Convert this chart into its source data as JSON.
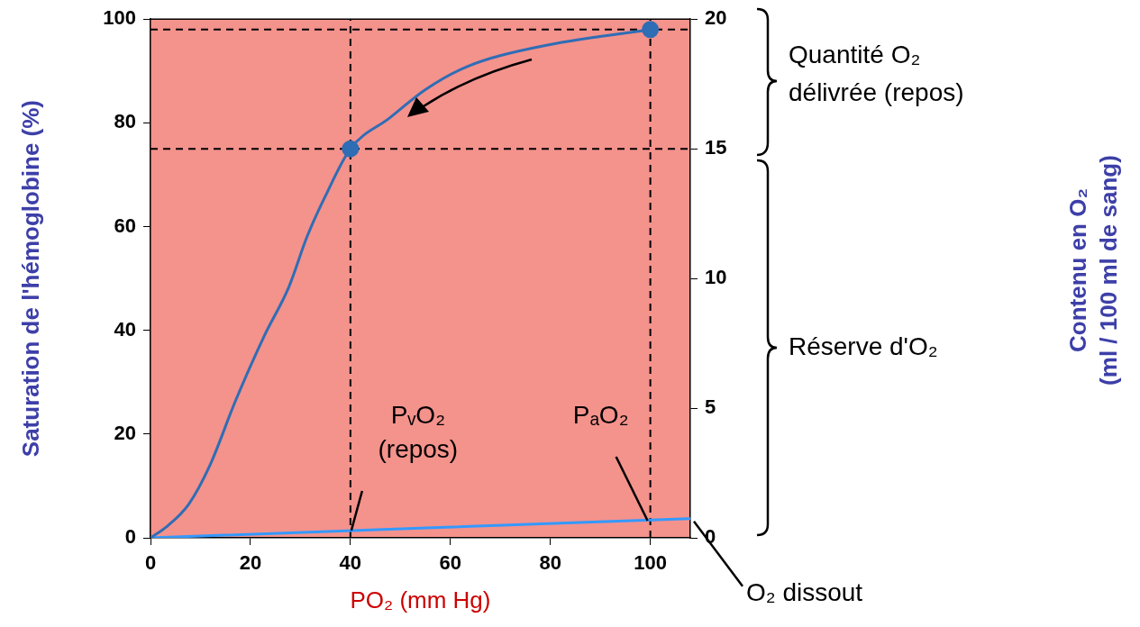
{
  "chart_data": {
    "type": "line",
    "xlabel": "PO₂ (mm Hg)",
    "ylabel": "Saturation de l'hémoglobine (%)",
    "xlim": [
      0,
      108
    ],
    "xticks": [
      0,
      20,
      40,
      60,
      80,
      100
    ],
    "ylim": [
      0,
      100
    ],
    "yticks": [
      0,
      20,
      40,
      60,
      80,
      100
    ],
    "y2lim": [
      0,
      20
    ],
    "y2ticks": [
      0,
      5,
      10,
      15,
      20
    ],
    "grid": false,
    "legend": false,
    "line_style": "solid",
    "marker": "none",
    "series": [
      {
        "type": "line",
        "color": "#2f6db5",
        "x": [
          0,
          3.3,
          7.6,
          11.9,
          17,
          22.7,
          27.7,
          31.3,
          34.9,
          40,
          47.8,
          55,
          63.5,
          77.9,
          100
        ],
        "values": [
          0,
          2.2,
          6.4,
          14,
          26.4,
          38.8,
          48.4,
          58,
          65.7,
          75,
          80.9,
          86.4,
          90.9,
          94.7,
          98
        ]
      },
      {
        "type": "line",
        "name": "O₂ dissout",
        "color": "#3399ff",
        "x": [
          0,
          108
        ],
        "values": [
          0,
          3.7
        ]
      },
      {
        "type": "scatter",
        "marker": "circle",
        "color": "#2f6db5",
        "x": [
          40,
          100
        ],
        "values": [
          75,
          98
        ],
        "axis": "y"
      }
    ],
    "ref_lines": [
      {
        "axis": "y",
        "value": 98,
        "color": "#000000",
        "line_style": "dashed"
      },
      {
        "axis": "y",
        "value": 75,
        "color": "#000000",
        "line_style": "dashed"
      },
      {
        "axis": "x",
        "value": 40,
        "color": "#000000",
        "line_style": "dashed"
      },
      {
        "axis": "x",
        "value": 100,
        "color": "#000000",
        "line_style": "dashed"
      }
    ],
    "annotations": [
      {
        "text": "PᵥO₂ (repos)",
        "x": 40,
        "y": 1.4
      },
      {
        "text": "PₐO₂",
        "x": 100,
        "y": 3.3
      },
      "Quantité O₂ délivrée (repos)",
      "Réserve d'O₂",
      "Contenu en O₂ (ml / 100 ml de sang)"
    ]
  }
}
